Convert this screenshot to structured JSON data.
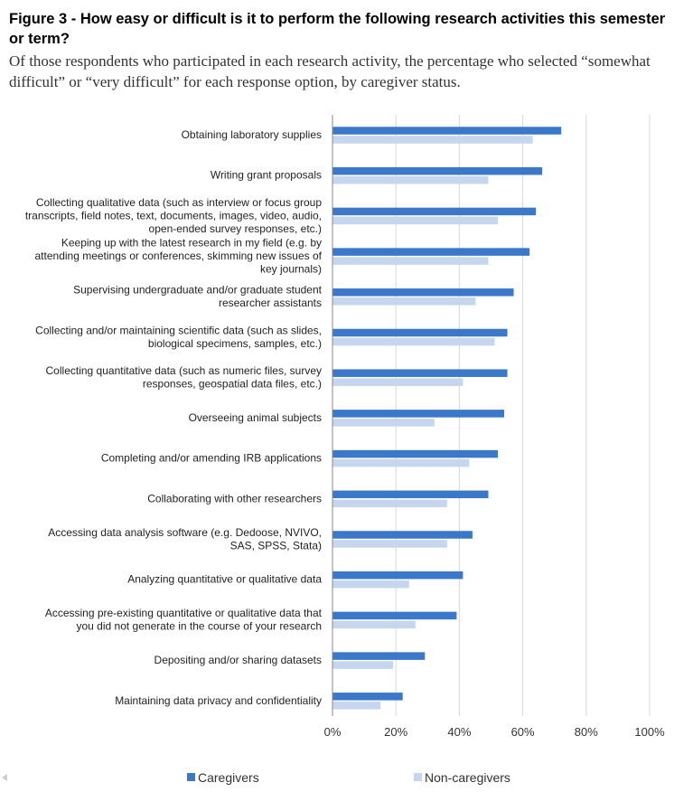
{
  "figure": {
    "title": "Figure 3 - How easy or difficult is it to perform the following research activities this semester or term?",
    "subtitle": "Of those respondents who participated in each research activity, the percentage who selected “somewhat difficult” or “very difficult” for each response option, by caregiver status."
  },
  "colors": {
    "caregivers": "#3b78c9",
    "non_caregivers": "#c5d6ee",
    "grid": "#d9d9d9",
    "axis": "#888888"
  },
  "chart_data": {
    "type": "bar",
    "orientation": "horizontal",
    "categories": [
      [
        "Obtaining laboratory supplies"
      ],
      [
        "Writing grant proposals"
      ],
      [
        "Collecting qualitative data (such as interview or focus group",
        "transcripts, field notes, text, documents, images, video, audio,",
        "open-ended survey responses, etc.)"
      ],
      [
        "Keeping up with the latest research in my field (e.g. by",
        "attending meetings or conferences, skimming new issues of",
        "key journals)"
      ],
      [
        "Supervising undergraduate and/or graduate student",
        "researcher assistants"
      ],
      [
        "Collecting and/or maintaining scientific data (such as slides,",
        "biological specimens, samples, etc.)"
      ],
      [
        "Collecting quantitative data (such as numeric files, survey",
        "responses, geospatial data files, etc.)"
      ],
      [
        "Overseeing animal subjects"
      ],
      [
        "Completing and/or amending IRB applications"
      ],
      [
        "Collaborating with other researchers"
      ],
      [
        "Accessing data analysis software (e.g. Dedoose, NVIVO,",
        "SAS, SPSS, Stata)"
      ],
      [
        "Analyzing quantitative or qualitative data"
      ],
      [
        "Accessing pre-existing quantitative or qualitative data that",
        "you did not generate in the course of your research"
      ],
      [
        "Depositing and/or sharing datasets"
      ],
      [
        "Maintaining data privacy and confidentiality"
      ]
    ],
    "series": [
      {
        "name": "Caregivers",
        "values": [
          72,
          66,
          64,
          62,
          57,
          55,
          55,
          54,
          52,
          49,
          44,
          41,
          39,
          29,
          22
        ]
      },
      {
        "name": "Non-caregivers",
        "values": [
          63,
          49,
          52,
          49,
          45,
          51,
          41,
          32,
          43,
          36,
          36,
          24,
          26,
          19,
          15
        ]
      }
    ],
    "xlim": [
      0,
      100
    ],
    "xticks": [
      "0%",
      "20%",
      "40%",
      "60%",
      "80%",
      "100%"
    ],
    "xtick_values": [
      0,
      20,
      40,
      60,
      80,
      100
    ],
    "grid": true,
    "legend_position": "bottom"
  }
}
